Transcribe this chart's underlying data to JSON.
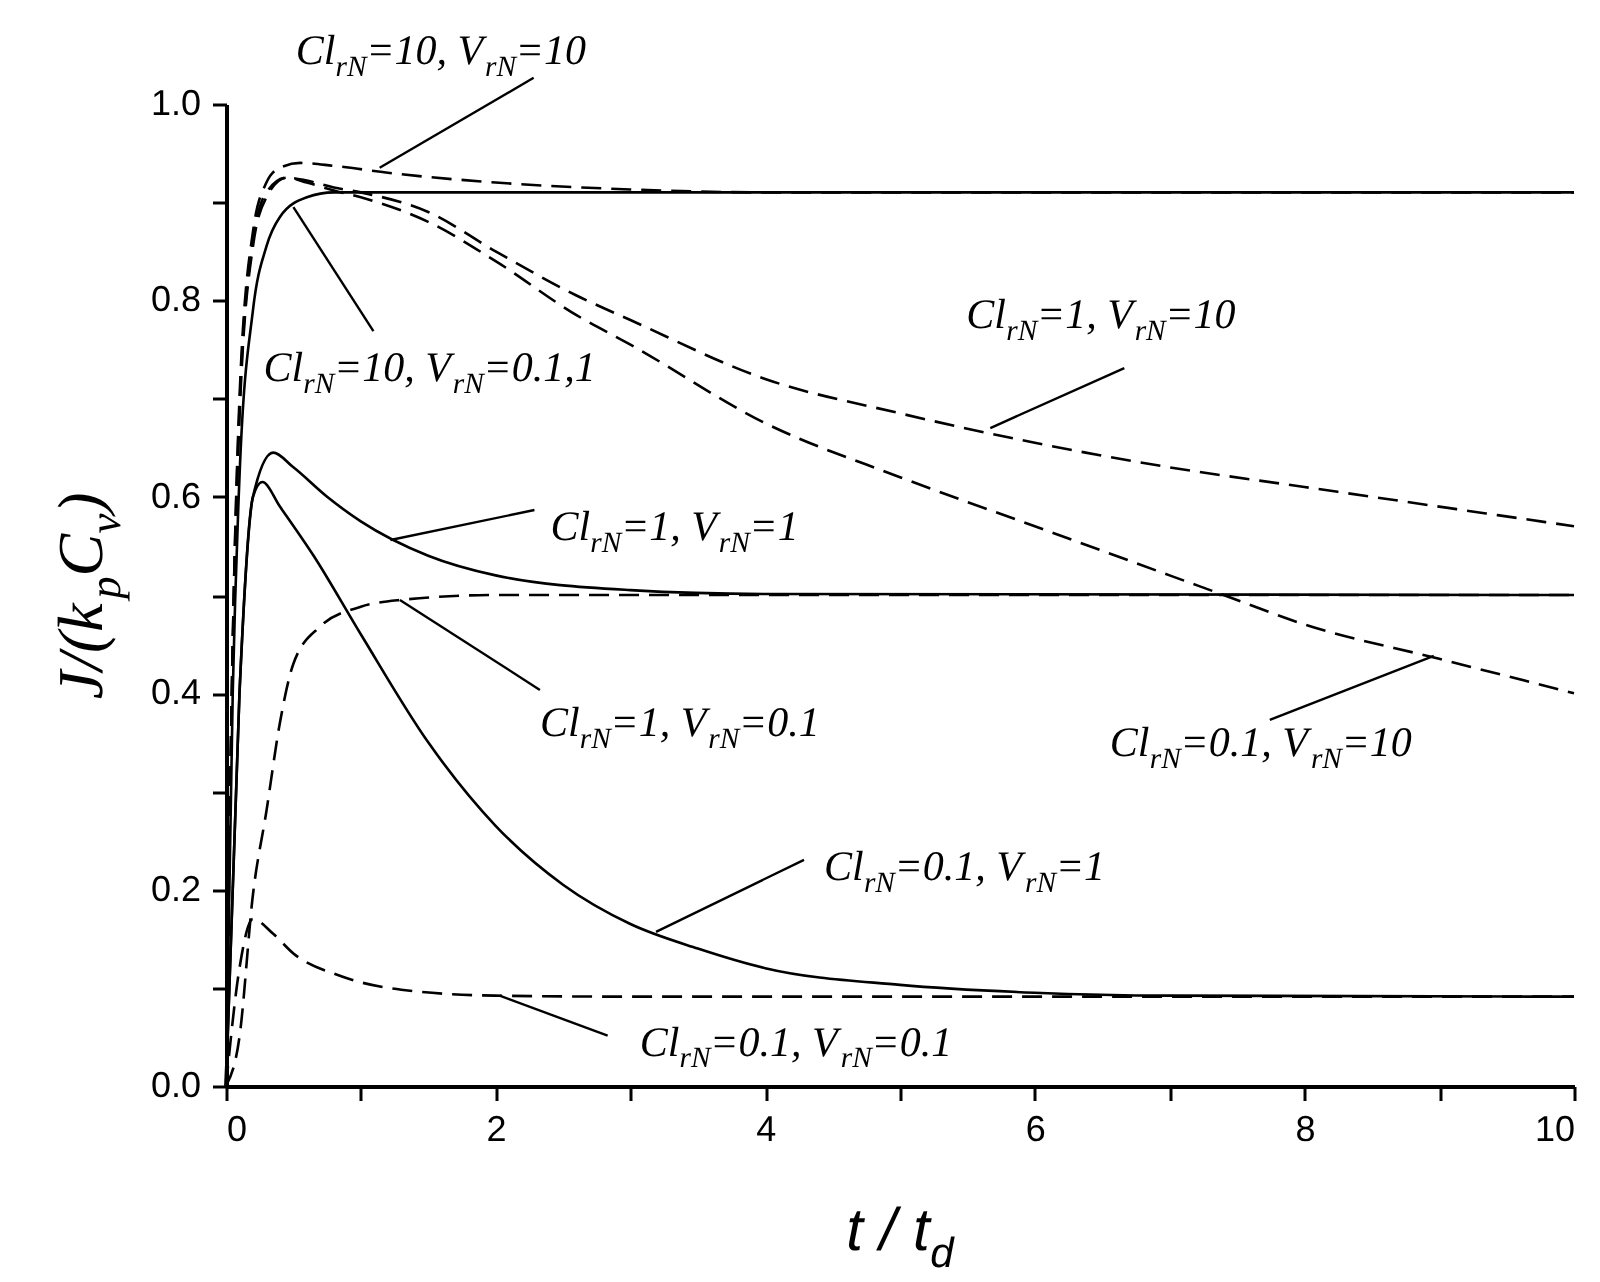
{
  "chart_data": {
    "type": "line",
    "xlabel": "t / t$_{d}$",
    "ylabel": "J/(k$_{p}$C$_{v}$)",
    "xlim": [
      0,
      10
    ],
    "ylim": [
      0,
      1
    ],
    "xticks": [
      0,
      {
        "value": 1,
        "label": null
      },
      2,
      {
        "value": 3,
        "label": null
      },
      4,
      {
        "value": 5,
        "label": null
      },
      6,
      {
        "value": 7,
        "label": null
      },
      8,
      {
        "value": 9,
        "label": null
      },
      10
    ],
    "yticks": [
      {
        "value": 0,
        "label": "0.0"
      },
      {
        "value": 0.1,
        "label": null
      },
      0.2,
      {
        "value": 0.3,
        "label": null
      },
      0.4,
      {
        "value": 0.5,
        "label": null
      },
      0.6,
      {
        "value": 0.7,
        "label": null
      },
      0.8,
      {
        "value": 0.9,
        "label": null
      },
      {
        "value": 1,
        "label": "1.0"
      }
    ],
    "series": [
      {
        "color": "#000000",
        "line_style": "solid",
        "x": [
          0,
          0.05,
          0.1,
          0.2,
          0.3,
          0.4,
          0.6,
          0.8,
          1,
          10
        ],
        "values": [
          0,
          0.4,
          0.62,
          0.79,
          0.855,
          0.885,
          0.905,
          0.91,
          0.91,
          0.91
        ]
      },
      {
        "color": "#000000",
        "line_style": "dashed",
        "x": [
          0,
          0.05,
          0.1,
          0.2,
          0.3,
          0.4,
          0.55,
          0.8,
          1.2,
          2,
          3,
          4,
          10
        ],
        "values": [
          0,
          0.45,
          0.7,
          0.87,
          0.92,
          0.935,
          0.94,
          0.937,
          0.93,
          0.92,
          0.913,
          0.91,
          0.91
        ]
      },
      {
        "color": "#000000",
        "line_style": "dashed",
        "x": [
          0,
          0.05,
          0.1,
          0.2,
          0.3,
          0.45,
          0.6,
          0.8,
          1,
          1.5,
          2,
          2.6,
          3,
          4,
          5,
          6,
          7,
          8,
          9,
          10
        ],
        "values": [
          0,
          0.45,
          0.69,
          0.86,
          0.91,
          0.925,
          0.922,
          0.915,
          0.91,
          0.89,
          0.85,
          0.805,
          0.78,
          0.72,
          0.685,
          0.655,
          0.63,
          0.61,
          0.59,
          0.57
        ]
      },
      {
        "color": "#000000",
        "line_style": "dashed",
        "x": [
          0,
          0.05,
          0.1,
          0.2,
          0.3,
          0.45,
          0.6,
          0.8,
          1,
          1.5,
          2,
          2.6,
          3,
          4,
          5,
          6,
          7,
          7.4,
          8,
          9,
          10
        ],
        "values": [
          0,
          0.44,
          0.68,
          0.855,
          0.905,
          0.925,
          0.92,
          0.912,
          0.905,
          0.88,
          0.84,
          0.785,
          0.755,
          0.675,
          0.62,
          0.57,
          0.52,
          0.5,
          0.47,
          0.435,
          0.4
        ]
      },
      {
        "color": "#000000",
        "line_style": "solid",
        "x": [
          0,
          0.1,
          0.2,
          0.35,
          0.5,
          0.75,
          1,
          1.5,
          2,
          3,
          4,
          10
        ],
        "values": [
          0,
          0.4,
          0.6,
          0.645,
          0.63,
          0.6,
          0.575,
          0.54,
          0.52,
          0.505,
          0.501,
          0.5
        ]
      },
      {
        "color": "#000000",
        "line_style": "dashed",
        "x": [
          0,
          0.1,
          0.2,
          0.3,
          0.4,
          0.5,
          0.7,
          1,
          1.3,
          2,
          10
        ],
        "values": [
          0,
          0.05,
          0.195,
          0.28,
          0.37,
          0.43,
          0.468,
          0.488,
          0.495,
          0.5,
          0.5
        ]
      },
      {
        "color": "#000000",
        "line_style": "solid",
        "x": [
          0,
          0.1,
          0.2,
          0.27,
          0.4,
          0.65,
          1,
          1.5,
          2,
          2.5,
          3,
          3.5,
          4,
          5,
          6,
          7,
          10
        ],
        "values": [
          0,
          0.4,
          0.6,
          0.615,
          0.59,
          0.54,
          0.46,
          0.35,
          0.265,
          0.205,
          0.165,
          0.14,
          0.12,
          0.103,
          0.095,
          0.092,
          0.091
        ]
      },
      {
        "color": "#000000",
        "line_style": "dashed",
        "x": [
          0,
          0.1,
          0.2,
          0.35,
          0.5,
          0.85,
          1.3,
          2,
          3,
          10
        ],
        "values": [
          0,
          0.12,
          0.17,
          0.155,
          0.135,
          0.112,
          0.098,
          0.092,
          0.091,
          0.091
        ]
      }
    ],
    "annotations": [
      {
        "text": "Cl$_{rN}$=10, V$_{rN}$=10",
        "x": 1.14,
        "y": 0.935
      },
      {
        "text": "Cl$_{rN}$=10, V$_{rN}$=0.1,1",
        "x": 0.5,
        "y": 0.895
      },
      {
        "text": "Cl$_{rN}$=1, V$_{rN}$=10",
        "x": 5.67,
        "y": 0.67
      },
      {
        "text": "Cl$_{rN}$=1, V$_{rN}$=1",
        "x": 1.22,
        "y": 0.556
      },
      {
        "text": "Cl$_{rN}$=1, V$_{rN}$=0.1",
        "x": 1.29,
        "y": 0.495
      },
      {
        "text": "Cl$_{rN}$=0.1, V$_{rN}$=10",
        "x": 8.96,
        "y": 0.438
      },
      {
        "text": "Cl$_{rN}$=0.1, V$_{rN}$=1",
        "x": 3.19,
        "y": 0.157
      },
      {
        "text": "Cl$_{rN}$=0.1, V$_{rN}$=0.1",
        "x": 2.03,
        "y": 0.092
      }
    ]
  }
}
